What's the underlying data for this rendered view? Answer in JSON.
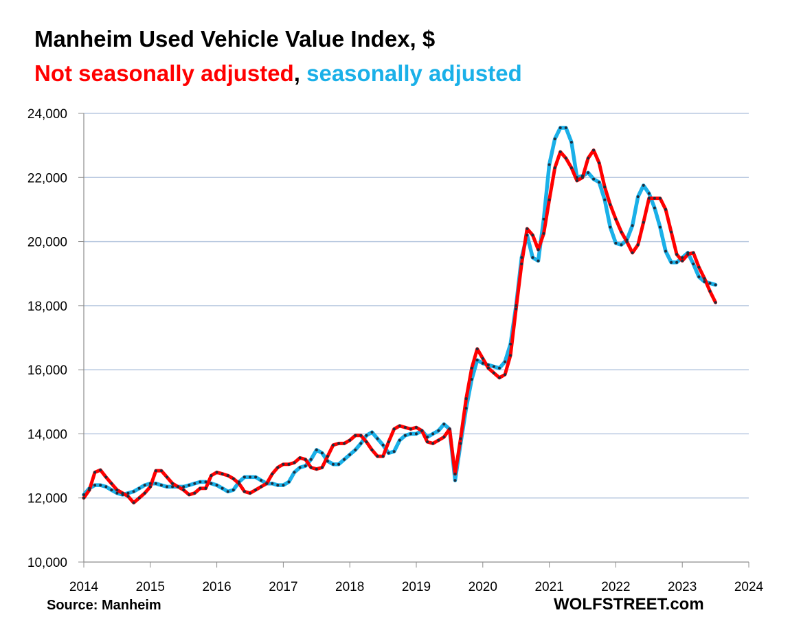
{
  "chart_data": {
    "type": "line",
    "title": "Manheim Used Vehicle Value Index, $",
    "subtitle_parts": [
      {
        "text": "Not seasonally adjusted",
        "color": "#ff0000"
      },
      {
        "text": ",",
        "color": "#000000"
      },
      {
        "text": " seasonally adjusted",
        "color": "#1ab0e8"
      }
    ],
    "xlabel": "",
    "ylabel": "",
    "xlim": [
      2014,
      2024
    ],
    "ylim": [
      10000,
      24000
    ],
    "x_ticks": [
      "2014",
      "2015",
      "2016",
      "2017",
      "2018",
      "2019",
      "2020",
      "2021",
      "2022",
      "2023",
      "2024"
    ],
    "y_ticks": [
      "10,000",
      "12,000",
      "14,000",
      "16,000",
      "18,000",
      "20,000",
      "22,000",
      "24,000"
    ],
    "y_tick_values": [
      10000,
      12000,
      14000,
      16000,
      18000,
      20000,
      22000,
      24000
    ],
    "grid": "horizontal",
    "legend": "none",
    "x_points_per_year": 12,
    "series": [
      {
        "name": "Not seasonally adjusted",
        "color": "#ff0000",
        "values": [
          12000,
          12250,
          12800,
          12870,
          12650,
          12450,
          12250,
          12150,
          12050,
          11850,
          12000,
          12150,
          12350,
          12850,
          12850,
          12650,
          12450,
          12350,
          12250,
          12100,
          12150,
          12300,
          12300,
          12700,
          12800,
          12750,
          12700,
          12600,
          12450,
          12200,
          12150,
          12250,
          12350,
          12450,
          12750,
          12950,
          13050,
          13050,
          13100,
          13250,
          13200,
          12950,
          12900,
          12950,
          13300,
          13650,
          13700,
          13700,
          13800,
          13950,
          13950,
          13750,
          13500,
          13300,
          13300,
          13750,
          14150,
          14250,
          14200,
          14150,
          14200,
          14100,
          13750,
          13700,
          13800,
          13900,
          14150,
          12750,
          13850,
          15100,
          16050,
          16650,
          16350,
          16050,
          15900,
          15750,
          15850,
          16450,
          17900,
          19300,
          20400,
          20200,
          19750,
          20250,
          21300,
          22300,
          22800,
          22600,
          22300,
          21900,
          22000,
          22600,
          22850,
          22450,
          21700,
          21150,
          20700,
          20300,
          20000,
          19650,
          19900,
          20600,
          21350,
          21350,
          21350,
          21000,
          20300,
          19600,
          19400,
          19600,
          19650,
          19200,
          18850,
          18450,
          18100
        ]
      },
      {
        "name": "seasonally adjusted",
        "color": "#1ab0e8",
        "values": [
          12100,
          12300,
          12400,
          12400,
          12350,
          12250,
          12150,
          12100,
          12150,
          12200,
          12300,
          12400,
          12450,
          12450,
          12400,
          12350,
          12350,
          12350,
          12350,
          12400,
          12450,
          12500,
          12500,
          12450,
          12400,
          12300,
          12200,
          12250,
          12500,
          12650,
          12650,
          12650,
          12550,
          12450,
          12450,
          12400,
          12400,
          12500,
          12800,
          12950,
          13000,
          13200,
          13500,
          13400,
          13150,
          13050,
          13050,
          13200,
          13350,
          13500,
          13700,
          13950,
          14050,
          13850,
          13650,
          13400,
          13450,
          13800,
          13950,
          14000,
          14000,
          14100,
          13900,
          14000,
          14100,
          14300,
          14150,
          12550,
          13700,
          14800,
          15700,
          16300,
          16200,
          16150,
          16100,
          16050,
          16250,
          16800,
          18000,
          19500,
          20200,
          19500,
          19400,
          20700,
          22400,
          23200,
          23550,
          23550,
          23100,
          22000,
          22050,
          22150,
          21950,
          21850,
          21300,
          20450,
          19950,
          19900,
          20050,
          20500,
          21400,
          21750,
          21500,
          21050,
          20450,
          19700,
          19350,
          19350,
          19500,
          19650,
          19300,
          18900,
          18750,
          18700,
          18650
        ]
      }
    ]
  },
  "footer": {
    "source": "Source: Manheim",
    "brand": "WOLFSTREET.com"
  }
}
